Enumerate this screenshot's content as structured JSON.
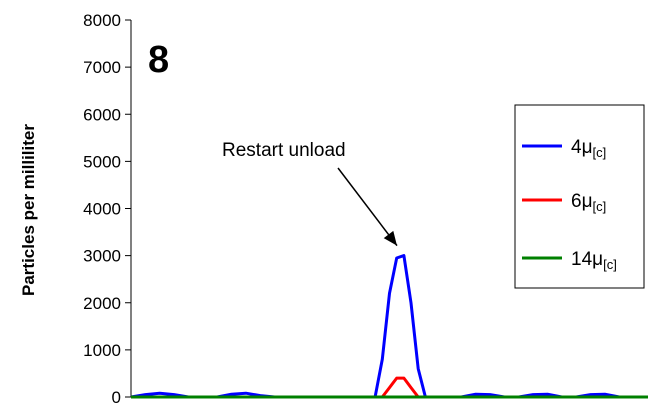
{
  "chart_data": {
    "type": "line",
    "panel_label": "8",
    "ylabel": "Particles per milliliter",
    "xlabel": "",
    "ylim": [
      0,
      8000
    ],
    "yticks": [
      0,
      1000,
      2000,
      3000,
      4000,
      5000,
      6000,
      7000,
      8000
    ],
    "grid": false,
    "legend_position": "right",
    "annotation": {
      "text": "Restart unload",
      "target_x": 18.8,
      "target_y": 3000
    },
    "x": [
      0,
      1,
      2,
      3,
      4,
      5,
      6,
      7,
      8,
      9,
      10,
      11,
      12,
      13,
      14,
      15,
      16,
      17,
      17.5,
      18,
      18.5,
      19,
      19.5,
      20,
      20.5,
      21,
      22,
      23,
      24,
      25,
      26,
      27,
      28,
      29,
      30,
      31,
      32,
      33,
      34,
      35,
      36
    ],
    "series": [
      {
        "name": "4μ",
        "name_sub": "[c]",
        "color": "#0000ff",
        "values": [
          0,
          50,
          80,
          50,
          0,
          0,
          0,
          60,
          80,
          30,
          0,
          0,
          0,
          0,
          0,
          0,
          0,
          0,
          800,
          2200,
          2950,
          3000,
          2000,
          600,
          0,
          0,
          0,
          0,
          60,
          50,
          0,
          0,
          50,
          60,
          0,
          0,
          50,
          60,
          0,
          0,
          0
        ]
      },
      {
        "name": "6μ",
        "name_sub": "[c]",
        "color": "#ff0000",
        "values": [
          0,
          0,
          0,
          0,
          0,
          0,
          0,
          0,
          0,
          0,
          0,
          0,
          0,
          0,
          0,
          0,
          0,
          0,
          0,
          200,
          400,
          400,
          200,
          0,
          0,
          0,
          0,
          0,
          0,
          0,
          0,
          0,
          0,
          0,
          0,
          0,
          0,
          0,
          0,
          0,
          0
        ]
      },
      {
        "name": "14μ",
        "name_sub": "[c]",
        "color": "#008000",
        "values": [
          0,
          0,
          0,
          0,
          0,
          0,
          0,
          0,
          0,
          0,
          0,
          0,
          0,
          0,
          0,
          0,
          0,
          0,
          0,
          0,
          0,
          0,
          0,
          0,
          0,
          0,
          0,
          0,
          0,
          0,
          0,
          0,
          0,
          0,
          0,
          0,
          0,
          0,
          0,
          0,
          0
        ]
      }
    ]
  }
}
